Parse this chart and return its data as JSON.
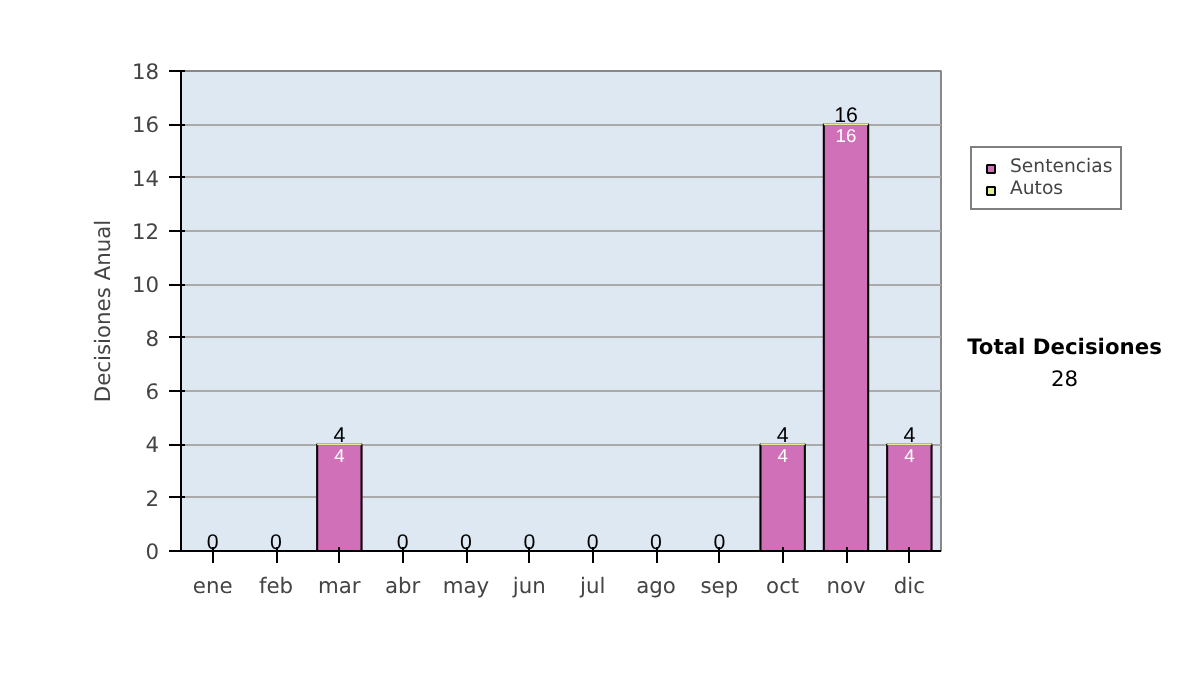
{
  "chart_data": {
    "type": "bar",
    "stacked": true,
    "ylabel": "Decisiones Anual",
    "categories": [
      "ene",
      "feb",
      "mar",
      "abr",
      "may",
      "jun",
      "jul",
      "ago",
      "sep",
      "oct",
      "nov",
      "dic"
    ],
    "series": [
      {
        "name": "Sentencias",
        "color": "#d070b8",
        "values": [
          0,
          0,
          4,
          0,
          0,
          0,
          0,
          0,
          0,
          4,
          16,
          4
        ],
        "value_labels": [
          null,
          null,
          "4",
          null,
          null,
          null,
          null,
          null,
          null,
          "4",
          "16",
          "4"
        ]
      },
      {
        "name": "Autos",
        "color": "#e0ee98",
        "values": [
          0,
          0,
          0,
          0,
          0,
          0,
          0,
          0,
          0,
          0,
          0,
          0
        ]
      }
    ],
    "totals": [
      "0",
      "0",
      "4",
      "0",
      "0",
      "0",
      "0",
      "0",
      "0",
      "4",
      "16",
      "4"
    ],
    "ylim": [
      0,
      18
    ],
    "yticks": [
      0,
      2,
      4,
      6,
      8,
      10,
      12,
      14,
      16,
      18
    ],
    "grid": "y",
    "legend": "right",
    "annotations": [
      "Total Decisiones",
      "28"
    ]
  }
}
